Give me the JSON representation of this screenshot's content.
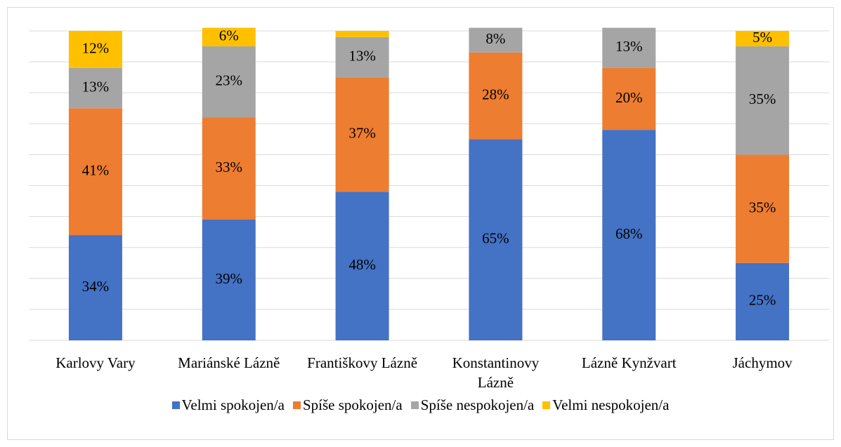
{
  "chart_data": {
    "type": "stacked_bar",
    "categories": [
      "Karlovy Vary",
      "Mariánské Lázně",
      "Františkovy Lázně",
      "Konstantinovy Lázně",
      "Lázně Kynžvart",
      "Jáchymov"
    ],
    "series": [
      {
        "name": "Velmi spokojen/a",
        "color": "#4472c4",
        "values": [
          34,
          39,
          48,
          65,
          68,
          25
        ],
        "value_labels": [
          "34%",
          "39%",
          "48%",
          "65%",
          "68%",
          "25%"
        ]
      },
      {
        "name": "Spíše spokojen/a",
        "color": "#ed7d31",
        "values": [
          41,
          33,
          37,
          28,
          20,
          35
        ],
        "value_labels": [
          "41%",
          "33%",
          "37%",
          "28%",
          "20%",
          "35%"
        ]
      },
      {
        "name": "Spíše nespokojen/a",
        "color": "#a5a5a5",
        "values": [
          13,
          23,
          13,
          8,
          13,
          35
        ],
        "value_labels": [
          "13%",
          "23%",
          "13%",
          "8%",
          "13%",
          "35%"
        ]
      },
      {
        "name": "Velmi nespokojen/a",
        "color": "#ffc000",
        "values": [
          12,
          6,
          2,
          0,
          0,
          5
        ],
        "value_labels": [
          "12%",
          "6%",
          null,
          null,
          null,
          "5%"
        ]
      }
    ],
    "ylim": [
      0,
      100
    ],
    "yticks": [
      0,
      10,
      20,
      30,
      40,
      50,
      60,
      70,
      80,
      90,
      100
    ],
    "grid": true,
    "legend": "bottom"
  }
}
